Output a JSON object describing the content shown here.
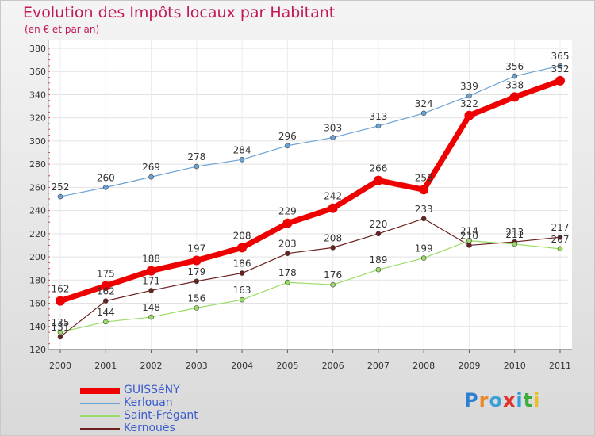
{
  "title": "Evolution des Impôts locaux par Habitant",
  "subtitle": "(en € et par an)",
  "logo_text": "Proxiti",
  "chart_data": {
    "type": "line",
    "x": [
      "2000",
      "2001",
      "2002",
      "2003",
      "2004",
      "2005",
      "2006",
      "2007",
      "2008",
      "2009",
      "2010",
      "2011"
    ],
    "ylim": [
      120,
      380
    ],
    "yticks": [
      120,
      140,
      160,
      180,
      200,
      220,
      240,
      260,
      280,
      300,
      320,
      340,
      360,
      380
    ],
    "grid": true,
    "legend_position": "bottom-left",
    "series": [
      {
        "name": "GUISSéNY",
        "color": "#ee0000",
        "values": [
          162,
          175,
          188,
          197,
          208,
          229,
          242,
          266,
          258,
          322,
          338,
          352
        ]
      },
      {
        "name": "Kerlouan",
        "color": "#6aa2d4",
        "values": [
          252,
          260,
          269,
          278,
          284,
          296,
          303,
          313,
          324,
          339,
          356,
          365
        ]
      },
      {
        "name": "Saint-Frégant",
        "color": "#99dd66",
        "values": [
          135,
          144,
          148,
          156,
          163,
          178,
          176,
          189,
          199,
          214,
          211,
          207
        ]
      },
      {
        "name": "Kernouës",
        "color": "#6b1f1f",
        "values": [
          131,
          162,
          171,
          179,
          186,
          203,
          208,
          220,
          233,
          210,
          213,
          217
        ]
      }
    ]
  }
}
